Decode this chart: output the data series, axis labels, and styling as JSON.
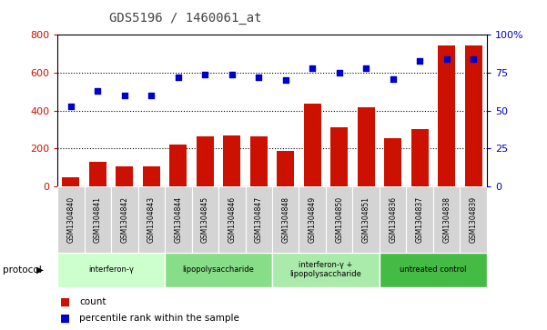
{
  "title": "GDS5196 / 1460061_at",
  "samples": [
    "GSM1304840",
    "GSM1304841",
    "GSM1304842",
    "GSM1304843",
    "GSM1304844",
    "GSM1304845",
    "GSM1304846",
    "GSM1304847",
    "GSM1304848",
    "GSM1304849",
    "GSM1304850",
    "GSM1304851",
    "GSM1304836",
    "GSM1304837",
    "GSM1304838",
    "GSM1304839"
  ],
  "counts": [
    50,
    130,
    105,
    105,
    220,
    265,
    270,
    265,
    185,
    435,
    310,
    415,
    255,
    300,
    745,
    745
  ],
  "percentile": [
    53,
    63,
    60,
    60,
    72,
    74,
    74,
    72,
    70,
    78,
    75,
    78,
    71,
    83,
    84,
    84
  ],
  "ylim_left": [
    0,
    800
  ],
  "ylim_right": [
    0,
    100
  ],
  "yticks_left": [
    0,
    200,
    400,
    600,
    800
  ],
  "yticks_right": [
    0,
    25,
    50,
    75,
    100
  ],
  "groups": [
    {
      "label": "interferon-γ",
      "start": 0,
      "end": 4,
      "color": "#ccffcc"
    },
    {
      "label": "lipopolysaccharide",
      "start": 4,
      "end": 8,
      "color": "#88dd88"
    },
    {
      "label": "interferon-γ +\nlipopolysaccharide",
      "start": 8,
      "end": 12,
      "color": "#aaeaaa"
    },
    {
      "label": "untreated control",
      "start": 12,
      "end": 16,
      "color": "#44bb44"
    }
  ],
  "bar_color": "#cc1100",
  "dot_color": "#0000cc",
  "title_color": "#444444",
  "grid_color": "#000000",
  "sample_box_color": "#d4d4d4",
  "sample_box_edge": "#bbbbbb"
}
